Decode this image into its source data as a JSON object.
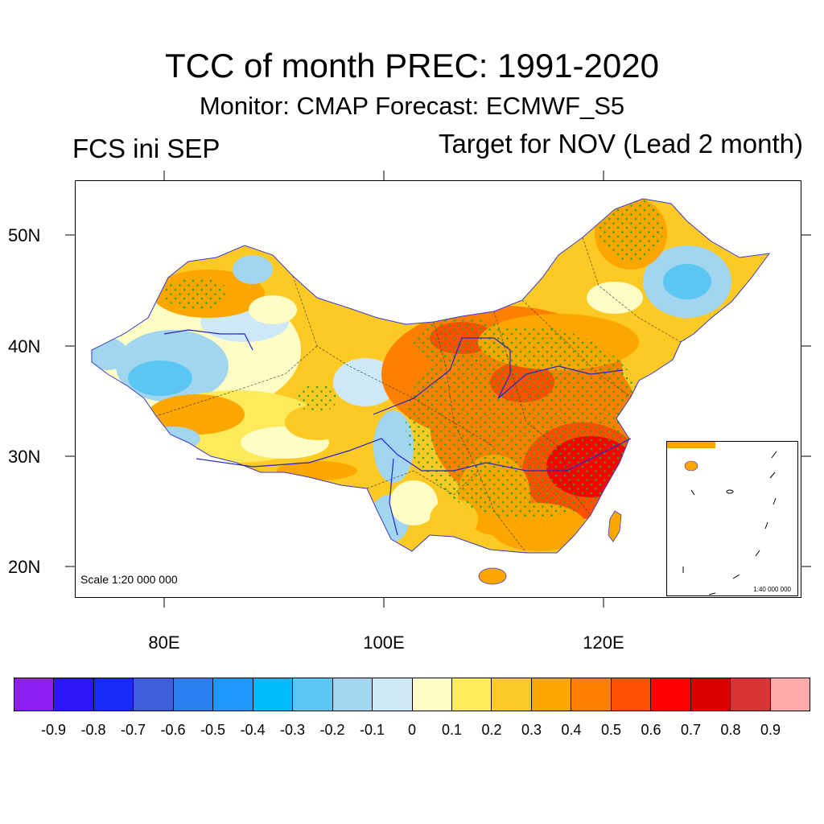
{
  "title": "TCC of month PREC: 1991-2020",
  "subtitle": "Monitor: CMAP   Forecast: ECMWF_S5",
  "left_label": "FCS ini SEP",
  "right_label": "Target for NOV (Lead 2 month)",
  "map": {
    "lat_ticks": [
      "50N",
      "40N",
      "30N",
      "20N"
    ],
    "lon_ticks": [
      "80E",
      "100E",
      "120E"
    ],
    "scale_label": "Scale 1:20 000 000",
    "inset_scale_label": "1:40 000 000",
    "stipple_meaning": "significant correlation",
    "stipple_color": "#22aa22"
  },
  "colorbar": {
    "colors": [
      "#8d1ff2",
      "#2b16f5",
      "#1a2af7",
      "#3e5fdd",
      "#2a7ef0",
      "#1e97ff",
      "#00bcff",
      "#5cc6f2",
      "#a2d6f0",
      "#cde9f7",
      "#fefdc6",
      "#feea5a",
      "#fdc924",
      "#fca600",
      "#fd8000",
      "#ff4f00",
      "#fd0000",
      "#d90000",
      "#d83434",
      "#ffaaaa"
    ],
    "labels": [
      "-0.9",
      "-0.8",
      "-0.7",
      "-0.6",
      "-0.5",
      "-0.4",
      "-0.3",
      "-0.2",
      "-0.1",
      "0",
      "0.1",
      "0.2",
      "0.3",
      "0.4",
      "0.5",
      "0.6",
      "0.7",
      "0.8",
      "0.9"
    ]
  }
}
